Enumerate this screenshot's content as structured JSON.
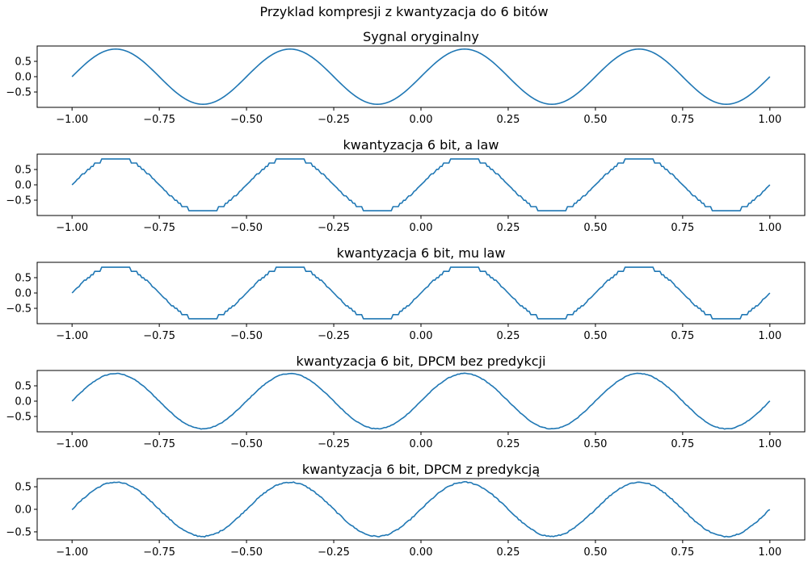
{
  "figure": {
    "suptitle": "Przyklad kompresji z kwantyzacja do 6 bitów",
    "line_color": "#1f77b4"
  },
  "chart_data": [
    {
      "type": "line",
      "title": "Sygnal oryginalny",
      "xlabel": "",
      "ylabel": "",
      "xlim": [
        -1.1,
        1.1
      ],
      "ylim": [
        -1.0,
        1.0
      ],
      "x_ticks": [
        -1.0,
        -0.75,
        -0.5,
        -0.25,
        0.0,
        0.25,
        0.5,
        0.75,
        1.0
      ],
      "x_tick_labels": [
        "−1.00",
        "−0.75",
        "−0.50",
        "−0.25",
        "0.00",
        "0.25",
        "0.50",
        "0.75",
        "1.00"
      ],
      "y_ticks": [
        0.5,
        0.0,
        -0.5
      ],
      "y_tick_labels": [
        "0.5",
        "0.0",
        "−0.5"
      ],
      "grid": false,
      "signal": {
        "kind": "sine",
        "amplitude": 0.9,
        "frequency": 2,
        "x_start": -1.0,
        "x_end": 1.0,
        "points": 400
      }
    },
    {
      "type": "line",
      "title": "kwantyzacja 6 bit, a law",
      "xlabel": "",
      "ylabel": "",
      "xlim": [
        -1.1,
        1.1
      ],
      "ylim": [
        -1.0,
        1.0
      ],
      "x_ticks": [
        -1.0,
        -0.75,
        -0.5,
        -0.25,
        0.0,
        0.25,
        0.5,
        0.75,
        1.0
      ],
      "x_tick_labels": [
        "−1.00",
        "−0.75",
        "−0.50",
        "−0.25",
        "0.00",
        "0.25",
        "0.50",
        "0.75",
        "1.00"
      ],
      "y_ticks": [
        0.5,
        0.0,
        -0.5
      ],
      "y_tick_labels": [
        "0.5",
        "0.0",
        "−0.5"
      ],
      "grid": false,
      "signal": {
        "kind": "companded",
        "amplitude": 0.9,
        "frequency": 2,
        "x_start": -1.0,
        "x_end": 1.0,
        "points": 400,
        "bits": 6,
        "law": "a",
        "param": 87.6,
        "clip": 0.85
      }
    },
    {
      "type": "line",
      "title": "kwantyzacja 6 bit, mu law",
      "xlabel": "",
      "ylabel": "",
      "xlim": [
        -1.1,
        1.1
      ],
      "ylim": [
        -1.0,
        1.0
      ],
      "x_ticks": [
        -1.0,
        -0.75,
        -0.5,
        -0.25,
        0.0,
        0.25,
        0.5,
        0.75,
        1.0
      ],
      "x_tick_labels": [
        "−1.00",
        "−0.75",
        "−0.50",
        "−0.25",
        "0.00",
        "0.25",
        "0.50",
        "0.75",
        "1.00"
      ],
      "y_ticks": [
        0.5,
        0.0,
        -0.5
      ],
      "y_tick_labels": [
        "0.5",
        "0.0",
        "−0.5"
      ],
      "grid": false,
      "signal": {
        "kind": "companded",
        "amplitude": 0.9,
        "frequency": 2,
        "x_start": -1.0,
        "x_end": 1.0,
        "points": 400,
        "bits": 6,
        "law": "mu",
        "param": 255,
        "clip": 0.85
      }
    },
    {
      "type": "line",
      "title": "kwantyzacja 6 bit, DPCM bez predykcji",
      "xlabel": "",
      "ylabel": "",
      "xlim": [
        -1.1,
        1.1
      ],
      "ylim": [
        -1.0,
        1.0
      ],
      "x_ticks": [
        -1.0,
        -0.75,
        -0.5,
        -0.25,
        0.0,
        0.25,
        0.5,
        0.75,
        1.0
      ],
      "x_tick_labels": [
        "−1.00",
        "−0.75",
        "−0.50",
        "−0.25",
        "0.00",
        "0.25",
        "0.50",
        "0.75",
        "1.00"
      ],
      "y_ticks": [
        0.5,
        0.0,
        -0.5
      ],
      "y_tick_labels": [
        "0.5",
        "0.0",
        "−0.5"
      ],
      "grid": false,
      "signal": {
        "kind": "noisy_sine",
        "amplitude": 0.9,
        "frequency": 2,
        "x_start": -1.0,
        "x_end": 1.0,
        "points": 400,
        "noise": 0.012
      }
    },
    {
      "type": "line",
      "title": "kwantyzacja 6 bit, DPCM z predykcją",
      "xlabel": "",
      "ylabel": "",
      "xlim": [
        -1.1,
        1.1
      ],
      "ylim": [
        -0.68,
        0.68
      ],
      "x_ticks": [
        -1.0,
        -0.75,
        -0.5,
        -0.25,
        0.0,
        0.25,
        0.5,
        0.75,
        1.0
      ],
      "x_tick_labels": [
        "−1.00",
        "−0.75",
        "−0.50",
        "−0.25",
        "0.00",
        "0.25",
        "0.50",
        "0.75",
        "1.00"
      ],
      "y_ticks": [
        0.5,
        0.0,
        -0.5
      ],
      "y_tick_labels": [
        "0.5",
        "0.0",
        "−0.5"
      ],
      "grid": false,
      "signal": {
        "kind": "noisy_sine",
        "amplitude": 0.6,
        "frequency": 2,
        "x_start": -1.0,
        "x_end": 1.0,
        "points": 400,
        "noise": 0.014
      }
    }
  ]
}
